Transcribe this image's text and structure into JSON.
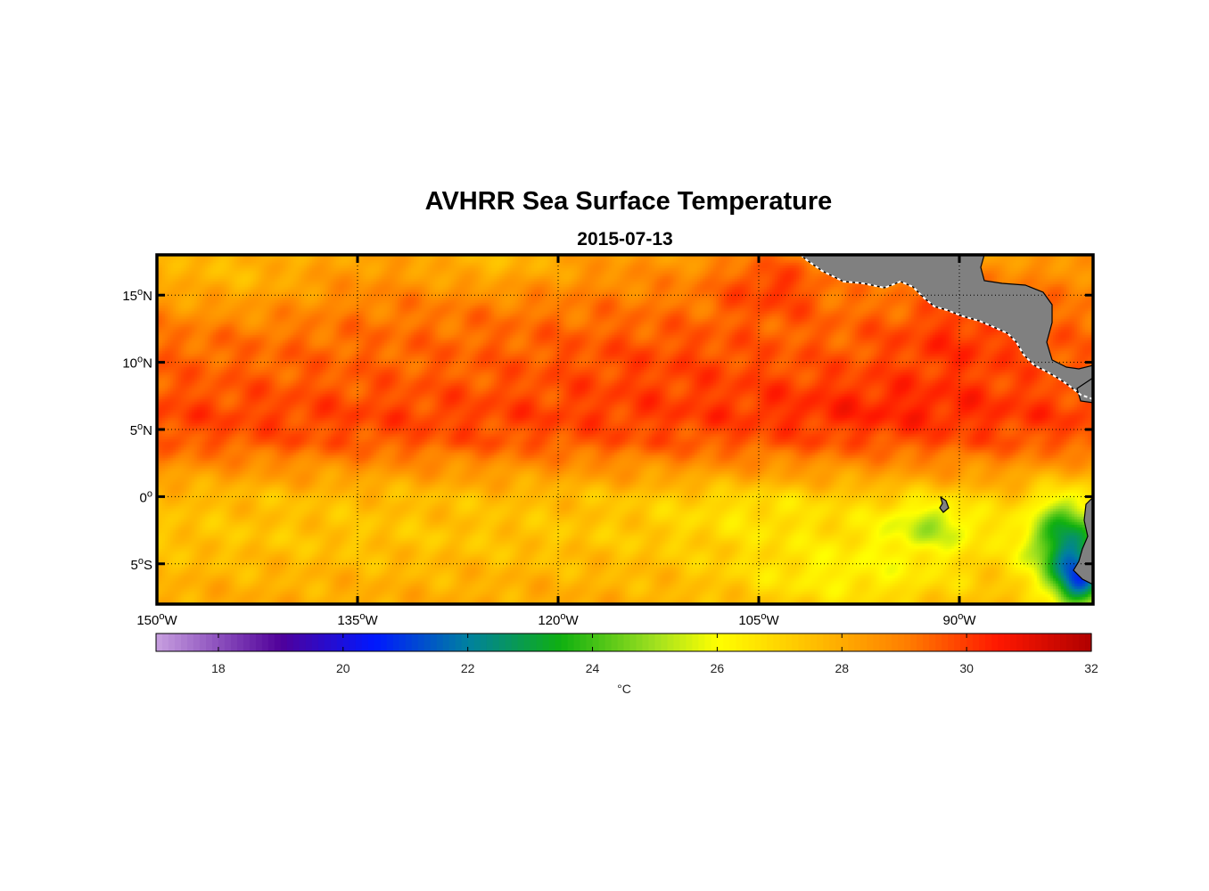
{
  "chart_data": {
    "type": "heatmap",
    "title": "AVHRR Sea Surface Temperature",
    "subtitle": "2015-07-13",
    "x_ticks": [
      {
        "value": -150,
        "deg": "150",
        "hemi": "W"
      },
      {
        "value": -135,
        "deg": "135",
        "hemi": "W"
      },
      {
        "value": -120,
        "deg": "120",
        "hemi": "W"
      },
      {
        "value": -105,
        "deg": "105",
        "hemi": "W"
      },
      {
        "value": -90,
        "deg": "90",
        "hemi": "W"
      }
    ],
    "y_ticks": [
      {
        "value": 15,
        "deg": "15",
        "hemi": "N"
      },
      {
        "value": 10,
        "deg": "10",
        "hemi": "N"
      },
      {
        "value": 5,
        "deg": "5",
        "hemi": "N"
      },
      {
        "value": 0,
        "deg": "0",
        "hemi": ""
      },
      {
        "value": -5,
        "deg": "5",
        "hemi": "S"
      }
    ],
    "xlim": [
      -150,
      -80
    ],
    "ylim": [
      -8,
      18
    ],
    "grid": true,
    "land_color": "#808080",
    "colorbar": {
      "range": [
        17,
        32
      ],
      "ticks": [
        18,
        20,
        22,
        24,
        26,
        28,
        30,
        32
      ],
      "label": "°C",
      "stops": [
        {
          "v": 17,
          "color": "#c8a0e0"
        },
        {
          "v": 19,
          "color": "#50009a"
        },
        {
          "v": 20.5,
          "color": "#0018ff"
        },
        {
          "v": 22,
          "color": "#0080a0"
        },
        {
          "v": 23.5,
          "color": "#10b010"
        },
        {
          "v": 25,
          "color": "#a0e020"
        },
        {
          "v": 26,
          "color": "#ffff00"
        },
        {
          "v": 27.5,
          "color": "#ffc000"
        },
        {
          "v": 29,
          "color": "#ff8000"
        },
        {
          "v": 30.5,
          "color": "#ff1800"
        },
        {
          "v": 32,
          "color": "#b00000"
        }
      ]
    },
    "sst_field": {
      "description_units": "degC",
      "base_profile": [
        {
          "lat": 18,
          "t": 28.4
        },
        {
          "lat": 15,
          "t": 29.0
        },
        {
          "lat": 12,
          "t": 29.3
        },
        {
          "lat": 9,
          "t": 29.5
        },
        {
          "lat": 6,
          "t": 29.9
        },
        {
          "lat": 4,
          "t": 29.6
        },
        {
          "lat": 2,
          "t": 28.5
        },
        {
          "lat": 0,
          "t": 27.6
        },
        {
          "lat": -3,
          "t": 27.4
        },
        {
          "lat": -6,
          "t": 27.8
        },
        {
          "lat": -8,
          "t": 28.0
        }
      ],
      "features": [
        {
          "lon": -104,
          "lat": 16,
          "rx": 4,
          "ry": 2.5,
          "dt": 1.2
        },
        {
          "lon": -90,
          "lat": 12,
          "rx": 6,
          "ry": 3,
          "dt": 0.8
        },
        {
          "lon": -95,
          "lat": 7,
          "rx": 10,
          "ry": 2.5,
          "dt": 0.5
        },
        {
          "lon": -145,
          "lat": 16,
          "rx": 8,
          "ry": 3,
          "dt": -1.0
        },
        {
          "lon": -125,
          "lat": 17,
          "rx": 6,
          "ry": 2,
          "dt": -0.8
        },
        {
          "lon": -82,
          "lat": -3.5,
          "rx": 3,
          "ry": 3.5,
          "dt": -4.5
        },
        {
          "lon": -81,
          "lat": -6.5,
          "rx": 2,
          "ry": 2,
          "dt": -4.5
        },
        {
          "lon": -92,
          "lat": -2,
          "rx": 4,
          "ry": 2,
          "dt": -2.0
        },
        {
          "lon": -98,
          "lat": -6,
          "rx": 10,
          "ry": 3,
          "dt": -1.5
        },
        {
          "lon": -105,
          "lat": -1,
          "rx": 8,
          "ry": 2,
          "dt": -0.8
        },
        {
          "lon": -112,
          "lat": 10,
          "rx": 10,
          "ry": 3,
          "dt": 0.4
        }
      ]
    }
  }
}
